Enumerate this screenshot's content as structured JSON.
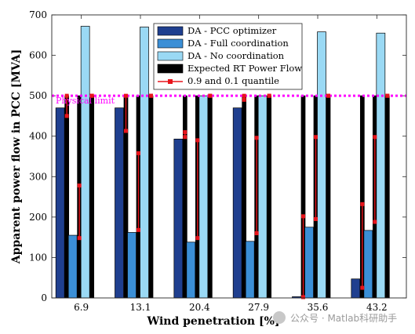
{
  "chart_data": {
    "type": "bar",
    "xlabel": "Wind penetration [%]",
    "ylabel": "Apparent power flow in PCC [MVA]",
    "ylim": [
      0,
      700
    ],
    "yticks": [
      0,
      100,
      200,
      300,
      400,
      500,
      600,
      700
    ],
    "categories": [
      "6.9",
      "13.1",
      "20.4",
      "27.9",
      "35.6",
      "43.2"
    ],
    "grid": false,
    "legend_position": "top-right",
    "series": [
      {
        "name": "DA - PCC optimizer",
        "color": "#1f3f8f",
        "values": [
          470,
          470,
          393,
          470,
          3,
          47
        ]
      },
      {
        "name": "DA - Full coordination",
        "color": "#3b8fd6",
        "values": [
          155,
          162,
          138,
          140,
          175,
          167
        ]
      },
      {
        "name": "DA - No coordination",
        "color": "#9ad9f4",
        "values": [
          672,
          670,
          500,
          500,
          658,
          655
        ]
      }
    ],
    "rt_power_flow": {
      "name": "Expected RT Power Flow",
      "color": "#000000",
      "values": [
        500,
        500,
        500,
        500,
        500,
        500
      ]
    },
    "quantiles": {
      "name": "0.9 and 0.1 quantile",
      "color": "#e8141b",
      "bars": [
        [
          {
            "low": 450,
            "high": 500
          },
          {
            "low": 148,
            "high": 278
          },
          {
            "low": 500,
            "high": 500
          }
        ],
        [
          {
            "low": 413,
            "high": 500
          },
          {
            "low": 168,
            "high": 358
          },
          {
            "low": 500,
            "high": 500
          }
        ],
        [
          {
            "low": 398,
            "high": 410
          },
          {
            "low": 148,
            "high": 390
          },
          {
            "low": 500,
            "high": 500
          }
        ],
        [
          {
            "low": 490,
            "high": 500
          },
          {
            "low": 160,
            "high": 396
          },
          {
            "low": 500,
            "high": 500
          }
        ],
        [
          {
            "low": 2,
            "high": 202
          },
          {
            "low": 195,
            "high": 398
          },
          {
            "low": 500,
            "high": 500
          }
        ],
        [
          {
            "low": 25,
            "high": 232
          },
          {
            "low": 188,
            "high": 398
          },
          {
            "low": 500,
            "high": 500
          }
        ]
      ]
    },
    "reference_line": {
      "value": 500,
      "label": "Physical limit",
      "color": "#ff00ff"
    }
  },
  "watermark": "公众号 · Matlab科研助手"
}
